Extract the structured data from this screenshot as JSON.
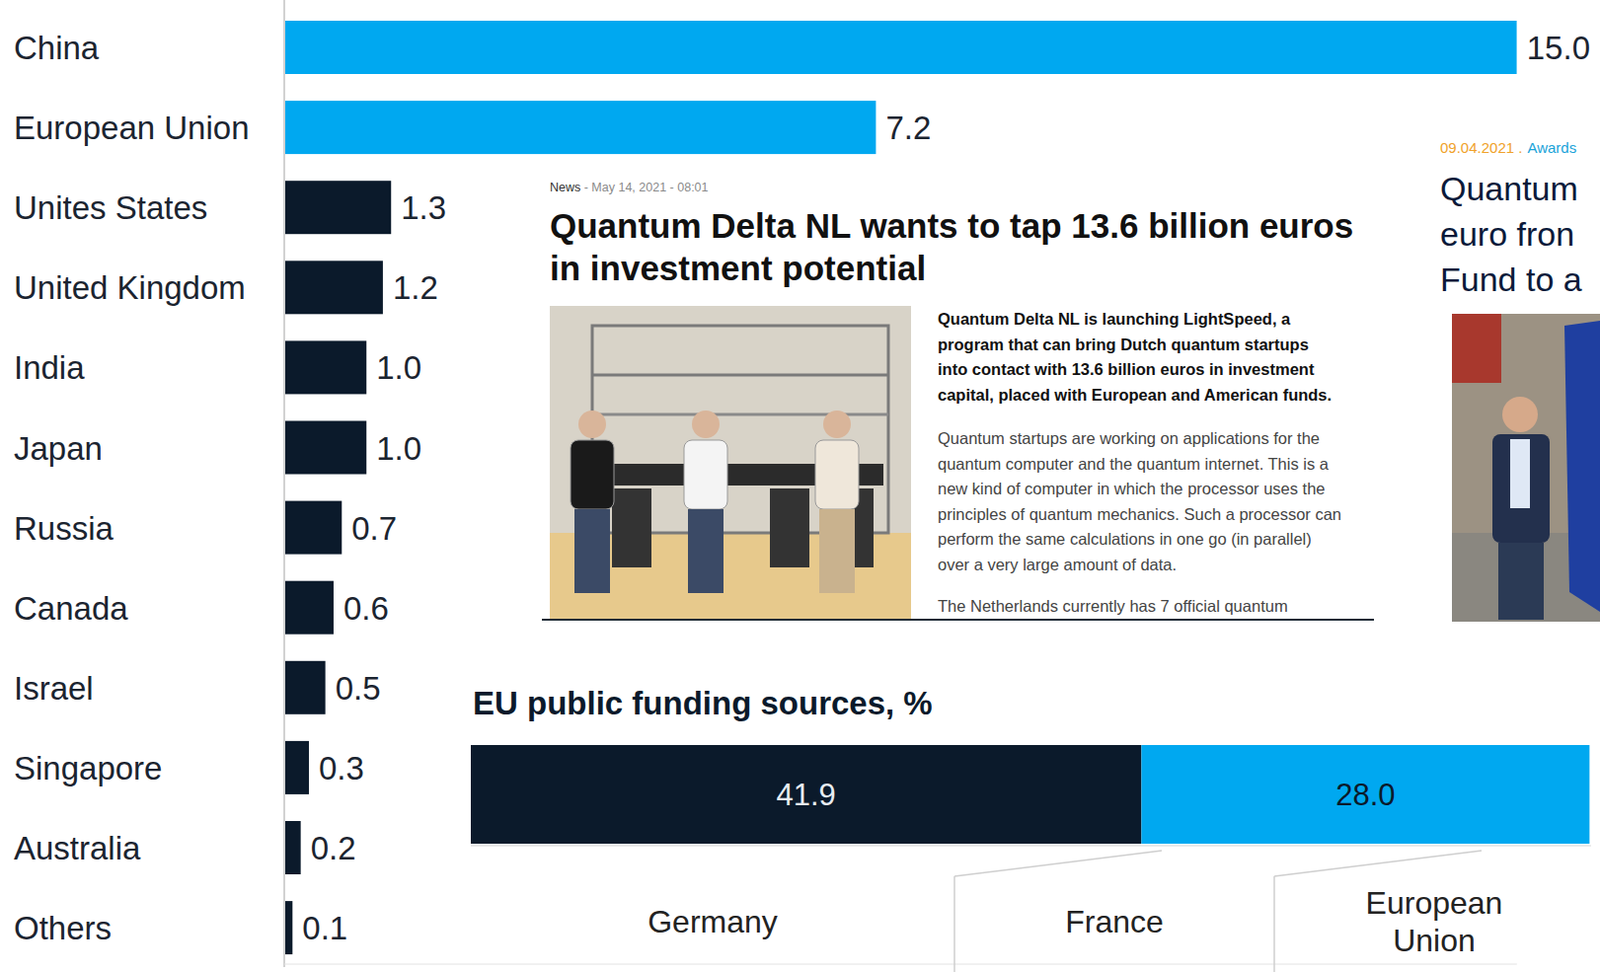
{
  "chart_data": [
    {
      "type": "bar",
      "orientation": "horizontal",
      "categories": [
        "China",
        "European Union",
        "Unites States",
        "United Kingdom",
        "India",
        "Japan",
        "Russia",
        "Canada",
        "Israel",
        "Singapore",
        "Australia",
        "Others"
      ],
      "values": [
        15.0,
        7.2,
        1.3,
        1.2,
        1.0,
        1.0,
        0.7,
        0.6,
        0.5,
        0.3,
        0.2,
        0.1
      ],
      "value_labels": [
        "15.0",
        "7.2",
        "1.3",
        "1.2",
        "1.0",
        "1.0",
        "0.7",
        "0.6",
        "0.5",
        "0.3",
        "0.2",
        "0.1"
      ],
      "colors": [
        "#00a8f0",
        "#00a8f0",
        "#0b1a2b",
        "#0b1a2b",
        "#0b1a2b",
        "#0b1a2b",
        "#0b1a2b",
        "#0b1a2b",
        "#0b1a2b",
        "#0b1a2b",
        "#0b1a2b",
        "#0b1a2b"
      ],
      "xlim": [
        0,
        15
      ],
      "xticks": [],
      "data_labels": true,
      "tick_labels": "y"
    },
    {
      "type": "bar",
      "orientation": "horizontal",
      "stacked": true,
      "title": "EU public funding sources, %",
      "categories": [
        null
      ],
      "series": [
        {
          "name": "Germany",
          "color": "#0b1a2b",
          "values": [
            41.9
          ],
          "value_labels": [
            "41.9"
          ]
        },
        {
          "name": "France",
          "color": "#00a8f0",
          "values": [
            28.0
          ],
          "value_labels": [
            "28.0"
          ]
        },
        {
          "name": "European Union",
          "values": [
            null
          ]
        }
      ],
      "xlim": [
        0,
        70
      ],
      "xticks": [],
      "data_labels": true,
      "tick_labels": false,
      "legend": "bottom"
    }
  ],
  "article": {
    "meta": [
      "News",
      " - May 14, 2021 - 08:01"
    ],
    "title_lines": [
      "Quantum Delta NL wants to tap 13.6 billion euros",
      "in investment potential"
    ],
    "lead_lines": [
      "Quantum Delta NL is launching LightSpeed, a",
      "program that can bring Dutch quantum startups",
      "into contact with 13.6 billion euros in investment",
      "capital, placed with European and American funds."
    ],
    "body_lines": [
      "Quantum startups are working on applications for the",
      "quantum computer and the quantum internet. This is a",
      "new kind of computer in which the processor uses the",
      "principles of quantum mechanics. Such a processor can",
      "perform the same calculations in one go (in parallel)",
      "over a very large amount of data."
    ],
    "next_paragraph": "The Netherlands currently has 7 official quantum"
  },
  "side_article": {
    "date": "09.04.2021 .",
    "tag": "Awards",
    "title_lines": [
      "Quantum",
      "euro fron",
      "Fund to a"
    ]
  }
}
